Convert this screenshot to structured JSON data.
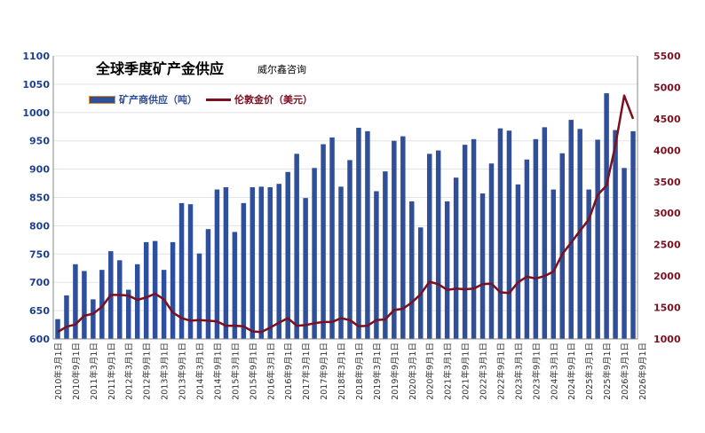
{
  "title": "全球季度矿产金供应",
  "source": "威尔鑫咨询",
  "chart_data": {
    "type": "bar",
    "colors": {
      "bar": "#2f4f9a",
      "line": "#7b1020",
      "left_axis": "#1f3f8f",
      "right_axis": "#7b1020"
    },
    "legend": [
      {
        "name": "矿产商供应（吨）",
        "kind": "bar"
      },
      {
        "name": "伦敦金价（美元）",
        "kind": "line"
      }
    ],
    "y_left": {
      "min": 600,
      "max": 1100,
      "step": 50
    },
    "y_right": {
      "min": 1000,
      "max": 5500,
      "step": 500
    },
    "x_tick_labels": [
      "2010年3月1日",
      "2010年9月1日",
      "2011年3月1日",
      "2011年9月1日",
      "2012年3月1日",
      "2012年9月1日",
      "2013年3月1日",
      "2013年9月1日",
      "2014年3月1日",
      "2014年9月1日",
      "2015年3月1日",
      "2015年9月1日",
      "2016年3月1日",
      "2016年9月1日",
      "2017年3月1日",
      "2017年9月1日",
      "2018年3月1日",
      "2018年9月1日",
      "2019年3月1日",
      "2019年9月1日",
      "2020年3月1日",
      "2020年9月1日",
      "2021年3月1日",
      "2021年9月1日",
      "2022年3月1日",
      "2022年9月1日",
      "2023年3月1日",
      "2023年9月1日",
      "2024年3月1日",
      "2024年9月1日",
      "2025年3月1日",
      "2025年9月1日",
      "2026年3月1日",
      "2026年9月1日"
    ],
    "supply": [
      635,
      677,
      732,
      720,
      670,
      722,
      755,
      739,
      687,
      732,
      771,
      773,
      722,
      771,
      840,
      838,
      751,
      794,
      864,
      868,
      789,
      840,
      868,
      869,
      868,
      874,
      895,
      927,
      849,
      902,
      944,
      956,
      869,
      916,
      973,
      967,
      861,
      896,
      950,
      958,
      843,
      797,
      927,
      933,
      843,
      885,
      943,
      953,
      857,
      910,
      972,
      968,
      873,
      917,
      953,
      974,
      864,
      928,
      987,
      971,
      864,
      952,
      1034,
      969,
      902,
      967
    ],
    "gold_price": [
      1110,
      1195,
      1230,
      1370,
      1400,
      1510,
      1700,
      1700,
      1690,
      1620,
      1660,
      1720,
      1630,
      1420,
      1330,
      1290,
      1300,
      1290,
      1280,
      1210,
      1210,
      1200,
      1120,
      1110,
      1180,
      1260,
      1330,
      1210,
      1220,
      1250,
      1270,
      1270,
      1330,
      1300,
      1200,
      1210,
      1300,
      1310,
      1460,
      1480,
      1580,
      1710,
      1910,
      1870,
      1780,
      1800,
      1790,
      1800,
      1870,
      1880,
      1740,
      1730,
      1900,
      1990,
      1960,
      2000,
      2070,
      2350,
      2530,
      2720,
      2900,
      3290,
      3440,
      4080,
      4870,
      4500
    ]
  }
}
